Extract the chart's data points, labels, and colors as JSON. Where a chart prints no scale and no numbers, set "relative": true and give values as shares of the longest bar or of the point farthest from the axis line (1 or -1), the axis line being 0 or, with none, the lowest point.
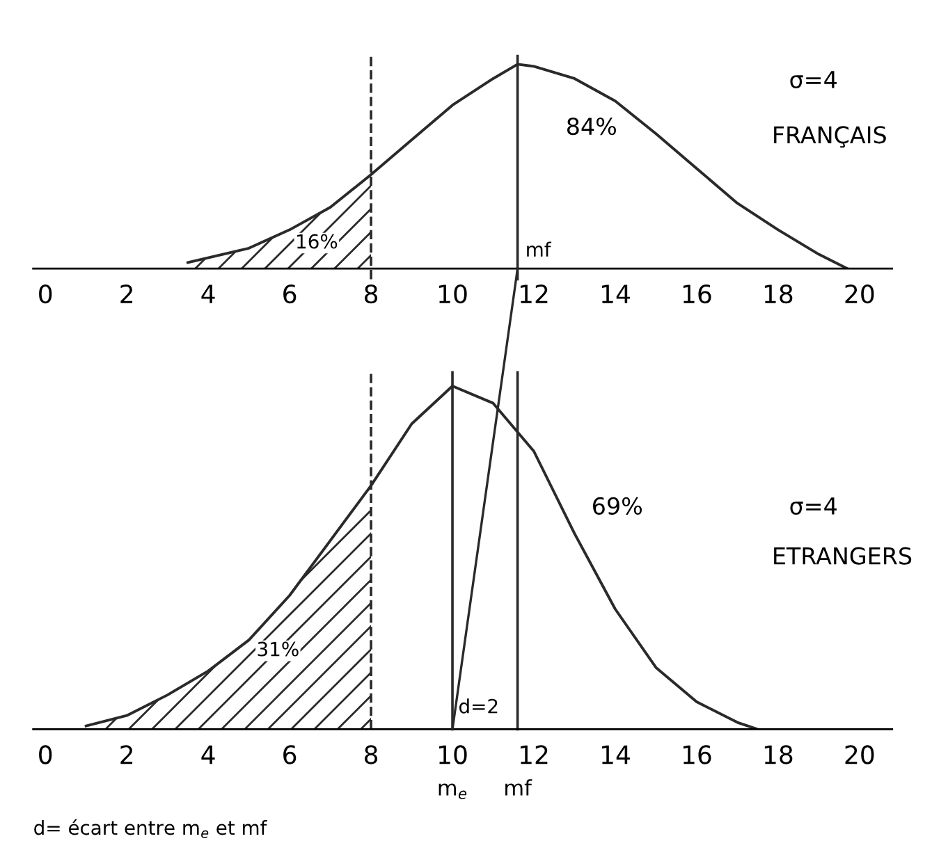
{
  "chart_data": [
    {
      "type": "line",
      "relative": true,
      "x": [
        3.5,
        5,
        6,
        7,
        8,
        9,
        10,
        11,
        11.6,
        12,
        13,
        14,
        15,
        16,
        17,
        18,
        19,
        19.7
      ],
      "series": [
        {
          "color": "#2a2a2a",
          "values": [
            0.03,
            0.1,
            0.19,
            0.3,
            0.46,
            0.63,
            0.8,
            0.93,
            1,
            0.99,
            0.93,
            0.82,
            0.66,
            0.49,
            0.32,
            0.19,
            0.07,
            0
          ]
        },
        {
          "type": "area",
          "color": "#2a2a2a",
          "x": [
            3.5,
            5,
            6,
            7,
            8
          ],
          "values": [
            0.03,
            0.1,
            0.19,
            0.3,
            0.46
          ]
        }
      ],
      "xlim": [
        -0.3,
        20.8
      ],
      "xticks": [
        0,
        2,
        4,
        6,
        8,
        10,
        12,
        14,
        16,
        18,
        20
      ],
      "ref_lines": [
        {
          "axis": "x",
          "value": 8,
          "label": null,
          "line_style": "dashed"
        },
        {
          "axis": "x",
          "value": 11.6,
          "label": "mf",
          "line_style": "solid"
        }
      ],
      "annotations": [
        "σ=4",
        "FRANÇAIS",
        "84%",
        "16%"
      ],
      "grid": false,
      "legend": false,
      "marker": "none",
      "line_style": "solid"
    },
    {
      "type": "line",
      "relative": true,
      "x": [
        1,
        2,
        3,
        4,
        5,
        6,
        7,
        8,
        9,
        10,
        11,
        12,
        13,
        14,
        15,
        16,
        17,
        17.5
      ],
      "series": [
        {
          "color": "#2a2a2a",
          "values": [
            0.01,
            0.04,
            0.1,
            0.17,
            0.26,
            0.39,
            0.55,
            0.71,
            0.89,
            1,
            0.95,
            0.81,
            0.57,
            0.35,
            0.18,
            0.08,
            0.02,
            0
          ]
        },
        {
          "type": "area",
          "color": "#2a2a2a",
          "x": [
            1,
            2,
            3,
            4,
            5,
            6,
            7,
            8
          ],
          "values": [
            0.01,
            0.04,
            0.1,
            0.17,
            0.26,
            0.39,
            0.55,
            0.71
          ]
        }
      ],
      "xlim": [
        -0.3,
        20.8
      ],
      "xticks": [
        0,
        2,
        4,
        6,
        8,
        10,
        12,
        14,
        16,
        18,
        20
      ],
      "ref_lines": [
        {
          "axis": "x",
          "value": 8,
          "label": null,
          "line_style": "dashed"
        },
        {
          "axis": "x",
          "value": 10,
          "label": "m$_{e}$",
          "line_style": "solid"
        },
        {
          "axis": "x",
          "value": 11.6,
          "label": "mf",
          "line_style": "solid"
        }
      ],
      "annotations": [
        "σ=4",
        "ETRANGERS",
        "69%",
        "31%",
        "d=2",
        "d= écart entre m$_{e}$ et mf"
      ],
      "grid": false,
      "legend": false,
      "marker": "none",
      "line_style": "solid"
    }
  ]
}
